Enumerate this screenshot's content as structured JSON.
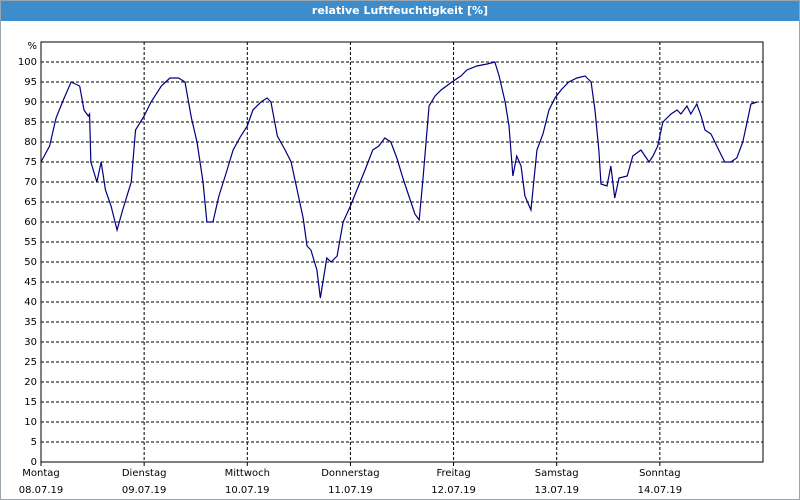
{
  "chart_data": {
    "type": "line",
    "title": "relative Luftfeuchtigkeit [%]",
    "y_unit": "%",
    "x": [
      0,
      2,
      3.5,
      5,
      7,
      9,
      10,
      11,
      11.3,
      11.6,
      13,
      14,
      15,
      16.3,
      17.7,
      19,
      21,
      22,
      24,
      25.6,
      28,
      30,
      32,
      33.5,
      35,
      36.3,
      37.7,
      38.6,
      40,
      41.4,
      43.3,
      44.7,
      46.5,
      48,
      49.3,
      51.2,
      52.6,
      53.5,
      55,
      56.8,
      58.2,
      59.6,
      61,
      61.9,
      62.8,
      64.2,
      65,
      66.5,
      67.5,
      68.9,
      70.3,
      72,
      73.5,
      75.4,
      77.2,
      78.6,
      80,
      81.4,
      82.8,
      84.2,
      85.6,
      87,
      88,
      88.9,
      90.3,
      91.7,
      93.1,
      95.6,
      97.7,
      99.1,
      101.4,
      103.8,
      105.6,
      106.6,
      108,
      108.9,
      109.8,
      110.7,
      111.7,
      112.6,
      114,
      115.4,
      116.8,
      118.2,
      119.6,
      121,
      122.8,
      124.7,
      126.6,
      128,
      128.9,
      129.8,
      130.3,
      131.7,
      132.6,
      133.5,
      134.5,
      136.4,
      137.7,
      139.6,
      141.5,
      142.4,
      143.5,
      144.7,
      146.6,
      148,
      148.9,
      150.3,
      151.2,
      152.6,
      153.6,
      154.5,
      155.9,
      156.8,
      157.7,
      159.1,
      160.5,
      161.9,
      163.3,
      164.3,
      165.2,
      166.6
    ],
    "series": [
      {
        "name": "relative Luftfeuchtigkeit",
        "color": "#000080",
        "values": [
          75,
          79,
          86,
          90,
          95,
          94,
          88,
          86.5,
          87,
          75,
          70,
          75,
          68,
          64,
          58,
          63,
          70,
          83,
          86.5,
          90,
          94,
          96,
          96,
          95,
          86,
          80,
          70,
          60,
          60,
          66.5,
          73,
          78,
          81.5,
          84,
          88,
          90,
          91,
          90,
          81.5,
          78,
          75,
          68,
          61,
          54,
          53,
          48,
          41,
          51,
          50,
          51.5,
          60,
          64,
          68,
          73,
          78,
          79,
          81,
          80,
          76,
          71,
          66.5,
          62,
          60.5,
          71,
          89,
          91.5,
          93,
          95,
          96.5,
          98,
          99,
          99.5,
          100,
          96.5,
          90,
          84,
          71.5,
          76.5,
          74,
          66.5,
          63,
          78,
          82,
          88,
          91,
          93,
          95,
          96,
          96.5,
          95,
          88,
          78,
          69.5,
          69,
          74,
          66,
          71,
          71.5,
          76.5,
          78,
          75,
          76.5,
          79,
          85,
          87,
          88,
          87,
          89,
          87,
          89.5,
          86.5,
          83,
          82,
          80,
          78,
          75,
          75,
          76,
          80,
          85,
          89.5,
          90
        ]
      }
    ],
    "xlim": [
      0,
      168
    ],
    "xticks": [
      {
        "value": 0,
        "label": "Montag"
      },
      {
        "value": 24,
        "label": "Dienstag"
      },
      {
        "value": 48,
        "label": "Mittwoch"
      },
      {
        "value": 72,
        "label": "Donnerstag"
      },
      {
        "value": 96,
        "label": "Freitag"
      },
      {
        "value": 120,
        "label": "Samstag"
      },
      {
        "value": 144,
        "label": "Sonntag"
      }
    ],
    "xtick_dates": [
      "08.07.19",
      "09.07.19",
      "10.07.19",
      "11.07.19",
      "12.07.19",
      "13.07.19",
      "14.07.19"
    ],
    "ylim": [
      0,
      105
    ],
    "yticks": [
      0,
      5,
      10,
      15,
      20,
      25,
      30,
      35,
      40,
      45,
      50,
      55,
      60,
      65,
      70,
      75,
      80,
      85,
      90,
      95,
      100
    ],
    "grid": true
  }
}
